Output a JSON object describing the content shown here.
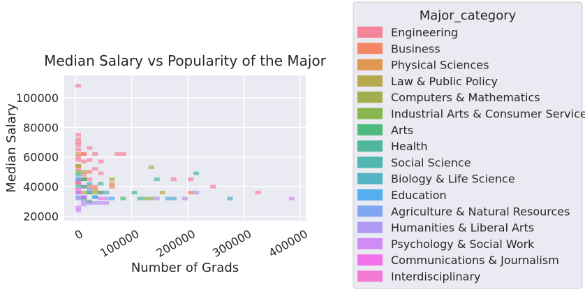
{
  "chart_data": {
    "type": "heatmap",
    "title": "Median Salary vs Popularity of the Major",
    "xlabel": "Number of Grads",
    "ylabel": "Median Salary",
    "xlim": [
      -20000,
      410000
    ],
    "ylim": [
      17000,
      115000
    ],
    "bin_width": [
      10000,
      2400
    ],
    "x_ticks": [
      0,
      100000,
      200000,
      300000,
      400000
    ],
    "x_tick_labels": [
      "0",
      "100000",
      "200000",
      "300000",
      "400000"
    ],
    "y_ticks": [
      20000,
      40000,
      60000,
      80000,
      100000
    ],
    "y_tick_labels": [
      "20000",
      "40000",
      "60000",
      "80000",
      "100000"
    ],
    "grid": true,
    "legend_title": "Major_category",
    "legend_placement": "outside-right",
    "series": [
      {
        "name": "Engineering",
        "color": "#f77189",
        "points": [
          [
            5000,
            108000
          ],
          [
            5000,
            75000
          ],
          [
            5000,
            72000
          ],
          [
            5000,
            70000
          ],
          [
            5000,
            68000
          ],
          [
            5000,
            65000
          ],
          [
            5000,
            60000
          ],
          [
            15000,
            62000
          ],
          [
            25000,
            66000
          ],
          [
            35000,
            62000
          ],
          [
            45000,
            57000
          ],
          [
            45000,
            49000
          ],
          [
            35000,
            52000
          ],
          [
            25000,
            58000
          ],
          [
            5000,
            58000
          ],
          [
            15000,
            57000
          ],
          [
            75000,
            62000
          ],
          [
            85000,
            62000
          ],
          [
            175000,
            45000
          ],
          [
            205000,
            45000
          ],
          [
            245000,
            40000
          ],
          [
            325000,
            36000
          ],
          [
            15000,
            40000
          ],
          [
            25000,
            45000
          ],
          [
            35000,
            40000
          ],
          [
            5000,
            43000
          ],
          [
            15000,
            48000
          ],
          [
            5000,
            52000
          ]
        ]
      },
      {
        "name": "Business",
        "color": "#f7754f",
        "points": [
          [
            15000,
            62000
          ],
          [
            25000,
            50000
          ],
          [
            45000,
            36000
          ],
          [
            65000,
            40000
          ],
          [
            205000,
            36000
          ]
        ]
      },
      {
        "name": "Physical Sciences",
        "color": "#dc8932",
        "points": [
          [
            5000,
            62000
          ],
          [
            5000,
            54000
          ],
          [
            15000,
            45000
          ],
          [
            25000,
            40000
          ],
          [
            35000,
            38000
          ],
          [
            65000,
            42000
          ]
        ]
      },
      {
        "name": "Law & Public Policy",
        "color": "#ae9d31",
        "points": [
          [
            5000,
            54000
          ],
          [
            15000,
            50000
          ],
          [
            15000,
            36000
          ],
          [
            155000,
            36000
          ]
        ]
      },
      {
        "name": "Computers & Mathematics",
        "color": "#97a431",
        "points": [
          [
            135000,
            53000
          ],
          [
            65000,
            45000
          ],
          [
            15000,
            45000
          ],
          [
            5000,
            42000
          ],
          [
            35000,
            36000
          ],
          [
            135000,
            32000
          ]
        ]
      },
      {
        "name": "Industrial Arts & Consumer Services",
        "color": "#77ab31",
        "points": [
          [
            5000,
            50000
          ],
          [
            15000,
            40000
          ],
          [
            25000,
            36000
          ],
          [
            125000,
            32000
          ]
        ]
      },
      {
        "name": "Arts",
        "color": "#32b166",
        "points": [
          [
            105000,
            36000
          ],
          [
            85000,
            32000
          ],
          [
            15000,
            32000
          ],
          [
            25000,
            30000
          ]
        ]
      },
      {
        "name": "Health",
        "color": "#34ae8d",
        "points": [
          [
            5000,
            48000
          ],
          [
            15000,
            45000
          ],
          [
            45000,
            42000
          ],
          [
            215000,
            49000
          ],
          [
            115000,
            32000
          ]
        ]
      },
      {
        "name": "Social Science",
        "color": "#36ada4",
        "points": [
          [
            5000,
            45000
          ],
          [
            25000,
            42000
          ],
          [
            145000,
            45000
          ],
          [
            45000,
            36000
          ]
        ]
      },
      {
        "name": "Biology & Life Science",
        "color": "#38aabb",
        "points": [
          [
            5000,
            40000
          ],
          [
            25000,
            36000
          ],
          [
            55000,
            36000
          ],
          [
            35000,
            33000
          ],
          [
            175000,
            32000
          ],
          [
            275000,
            32000
          ]
        ]
      },
      {
        "name": "Education",
        "color": "#3ba3ec",
        "points": [
          [
            5000,
            36000
          ],
          [
            15000,
            33000
          ],
          [
            35000,
            33000
          ],
          [
            65000,
            32000
          ],
          [
            165000,
            32000
          ]
        ]
      },
      {
        "name": "Agriculture & Natural Resources",
        "color": "#6e9bf4",
        "points": [
          [
            5000,
            45000
          ],
          [
            15000,
            40000
          ],
          [
            5000,
            33000
          ],
          [
            25000,
            38000
          ]
        ]
      },
      {
        "name": "Humanities & Liberal Arts",
        "color": "#a48cf4",
        "points": [
          [
            5000,
            32000
          ],
          [
            15000,
            30000
          ],
          [
            25000,
            29000
          ],
          [
            35000,
            29000
          ],
          [
            45000,
            29000
          ],
          [
            55000,
            32000
          ],
          [
            145000,
            32000
          ],
          [
            195000,
            32000
          ],
          [
            215000,
            36000
          ]
        ]
      },
      {
        "name": "Psychology & Social Work",
        "color": "#cc7af4",
        "points": [
          [
            5000,
            26000
          ],
          [
            5000,
            24000
          ],
          [
            15000,
            28000
          ],
          [
            55000,
            29000
          ],
          [
            385000,
            32000
          ]
        ]
      },
      {
        "name": "Communications & Journalism",
        "color": "#f45deb",
        "points": [
          [
            5000,
            36000
          ],
          [
            15000,
            33000
          ],
          [
            45000,
            32000
          ]
        ]
      },
      {
        "name": "Interdisciplinary",
        "color": "#f565cc",
        "points": [
          [
            5000,
            38000
          ],
          [
            5000,
            43000
          ]
        ]
      }
    ]
  }
}
